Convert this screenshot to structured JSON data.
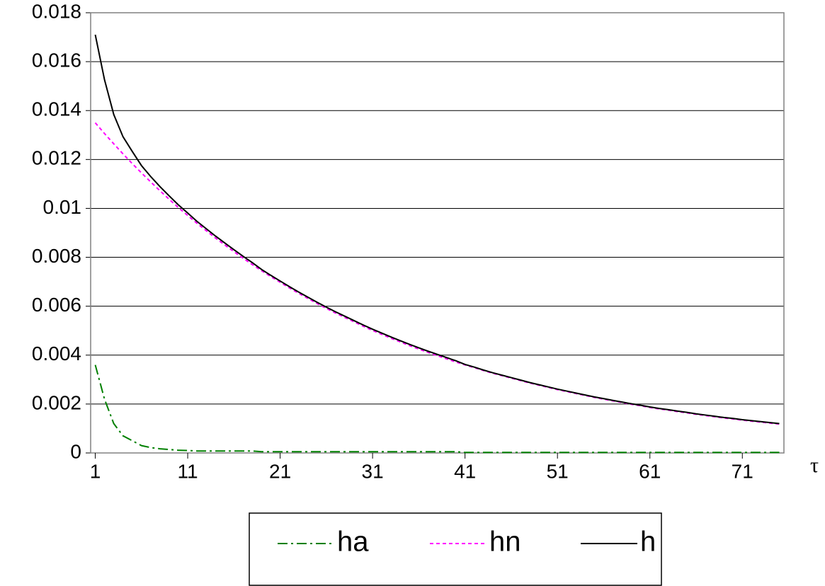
{
  "chart_data": {
    "type": "line",
    "x_label": "τ",
    "x": [
      1,
      2,
      3,
      4,
      5,
      6,
      7,
      8,
      9,
      10,
      11,
      12,
      13,
      14,
      15,
      16,
      17,
      18,
      19,
      20,
      21,
      22,
      23,
      24,
      25,
      26,
      27,
      28,
      29,
      30,
      31,
      32,
      33,
      34,
      35,
      36,
      37,
      38,
      39,
      40,
      41,
      42,
      43,
      44,
      45,
      46,
      47,
      48,
      49,
      50,
      51,
      52,
      53,
      54,
      55,
      56,
      57,
      58,
      59,
      60,
      61,
      62,
      63,
      64,
      65,
      66,
      67,
      68,
      69,
      70,
      71,
      72,
      73,
      74,
      75
    ],
    "series": [
      {
        "name": "ha",
        "color": "#008000",
        "dash": "dash-dot",
        "values": [
          0.0036,
          0.0022,
          0.0012,
          0.0007,
          0.0005,
          0.0003,
          0.00022,
          0.00017,
          0.00014,
          0.00011,
          0.0001,
          8e-05,
          8e-05,
          8e-05,
          8e-05,
          8e-05,
          8e-05,
          8e-05,
          5e-05,
          5e-05,
          5e-05,
          5e-05,
          5e-05,
          5e-05,
          5e-05,
          5e-05,
          5e-05,
          5e-05,
          5e-05,
          5e-05,
          5e-05,
          5e-05,
          5e-05,
          5e-05,
          5e-05,
          5e-05,
          5e-05,
          5e-05,
          5e-05,
          5e-05,
          2e-05,
          2e-05,
          2e-05,
          2e-05,
          2e-05,
          2e-05,
          2e-05,
          2e-05,
          2e-05,
          2e-05,
          2e-05,
          2e-05,
          2e-05,
          2e-05,
          2e-05,
          2e-05,
          2e-05,
          2e-05,
          2e-05,
          2e-05,
          2e-05,
          2e-05,
          2e-05,
          2e-05,
          2e-05,
          2e-05,
          2e-05,
          2e-05,
          2e-05,
          2e-05,
          2e-05,
          2e-05,
          2e-05,
          2e-05,
          2e-05
        ]
      },
      {
        "name": "hn",
        "color": "#ff00ff",
        "dash": "dot",
        "values": [
          0.0135,
          0.01306,
          0.01264,
          0.01223,
          0.01183,
          0.01145,
          0.01108,
          0.01072,
          0.01037,
          0.01003,
          0.00971,
          0.00939,
          0.00909,
          0.00879,
          0.00851,
          0.00823,
          0.00796,
          0.0077,
          0.00745,
          0.00721,
          0.00698,
          0.00675,
          0.00653,
          0.00632,
          0.00611,
          0.00591,
          0.00572,
          0.00554,
          0.00536,
          0.00518,
          0.00501,
          0.00485,
          0.00469,
          0.00454,
          0.00439,
          0.00425,
          0.00411,
          0.00398,
          0.00385,
          0.00372,
          0.0036,
          0.00349,
          0.00337,
          0.00326,
          0.00316,
          0.00306,
          0.00296,
          0.00286,
          0.00277,
          0.00268,
          0.00259,
          0.00251,
          0.00243,
          0.00235,
          0.00227,
          0.0022,
          0.00213,
          0.00206,
          0.00199,
          0.00193,
          0.00186,
          0.0018,
          0.00175,
          0.00169,
          0.00164,
          0.00158,
          0.00153,
          0.00148,
          0.00143,
          0.00139,
          0.00134,
          0.0013,
          0.00126,
          0.00122,
          0.00118
        ]
      },
      {
        "name": "h",
        "color": "#000000",
        "dash": "solid",
        "values": [
          0.0171,
          0.01526,
          0.01384,
          0.01293,
          0.01233,
          0.01175,
          0.0113,
          0.01089,
          0.01051,
          0.01014,
          0.00981,
          0.00947,
          0.00917,
          0.00887,
          0.00859,
          0.00831,
          0.00804,
          0.00778,
          0.0075,
          0.00726,
          0.00703,
          0.0068,
          0.00658,
          0.00637,
          0.00616,
          0.00596,
          0.00577,
          0.00559,
          0.00541,
          0.00523,
          0.00506,
          0.0049,
          0.00474,
          0.00459,
          0.00444,
          0.0043,
          0.00416,
          0.00403,
          0.0039,
          0.00377,
          0.00362,
          0.00351,
          0.00339,
          0.00328,
          0.00318,
          0.00308,
          0.00298,
          0.00288,
          0.00279,
          0.0027,
          0.00261,
          0.00253,
          0.00245,
          0.00237,
          0.00229,
          0.00222,
          0.00215,
          0.00208,
          0.00201,
          0.00195,
          0.00188,
          0.00182,
          0.00177,
          0.00171,
          0.00166,
          0.0016,
          0.00155,
          0.0015,
          0.00145,
          0.00141,
          0.00136,
          0.00132,
          0.00128,
          0.00124,
          0.0012
        ]
      }
    ],
    "xlim": [
      0.5,
      75.5
    ],
    "xticks": [
      1,
      11,
      21,
      31,
      41,
      51,
      61,
      71
    ],
    "ylim": [
      0,
      0.018
    ],
    "yticks": [
      0,
      0.002,
      0.004,
      0.006,
      0.008,
      0.01,
      0.012,
      0.014,
      0.016,
      0.018
    ],
    "grid": true,
    "legend": "bottom"
  }
}
